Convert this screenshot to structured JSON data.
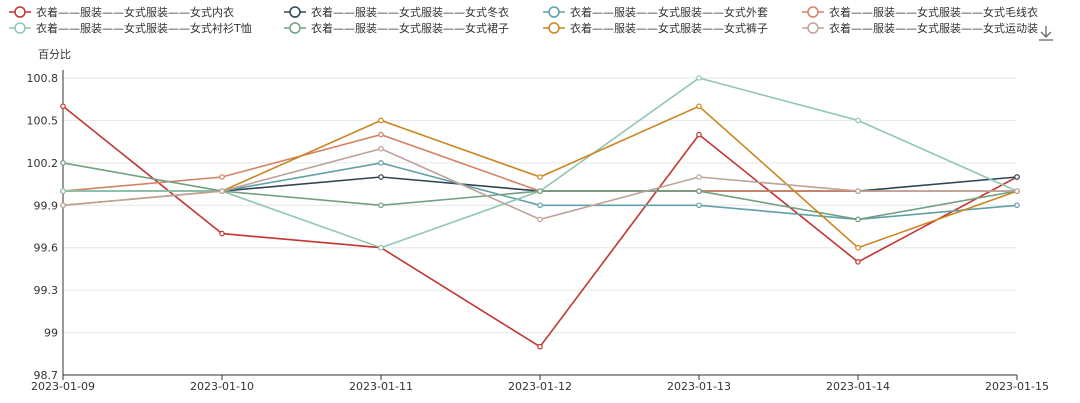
{
  "chart_data": {
    "type": "line",
    "ylabel": "百分比",
    "x": [
      "2023-01-09",
      "2023-01-10",
      "2023-01-11",
      "2023-01-12",
      "2023-01-13",
      "2023-01-14",
      "2023-01-15"
    ],
    "yticks": [
      "98.7",
      "99",
      "99.3",
      "99.6",
      "99.9",
      "100.2",
      "100.5",
      "100.8"
    ],
    "ylim": [
      98.7,
      100.8
    ],
    "grid": true,
    "legend_position": "top",
    "series": [
      {
        "name": "衣着——服装——女式服装——女式内衣",
        "color": "#c23531",
        "values": [
          100.6,
          99.7,
          99.6,
          98.9,
          100.4,
          99.5,
          100.1
        ]
      },
      {
        "name": "衣着——服装——女式服装——女式冬衣",
        "color": "#2f4554",
        "values": [
          100.0,
          100.0,
          100.1,
          100.0,
          100.0,
          100.0,
          100.1
        ]
      },
      {
        "name": "衣着——服装——女式服装——女式外套",
        "color": "#61a0a8",
        "values": [
          100.0,
          100.0,
          100.2,
          99.9,
          99.9,
          99.8,
          99.9
        ]
      },
      {
        "name": "衣着——服装——女式服装——女式毛线衣",
        "color": "#d48265",
        "values": [
          100.0,
          100.1,
          100.4,
          100.0,
          100.0,
          100.0,
          100.0
        ]
      },
      {
        "name": "衣着——服装——女式服装——女式衬衫T恤",
        "color": "#91c7ae",
        "values": [
          100.0,
          100.0,
          99.6,
          100.0,
          100.8,
          100.5,
          100.0
        ]
      },
      {
        "name": "衣着——服装——女式服装——女式裙子",
        "color": "#749f83",
        "values": [
          100.2,
          100.0,
          99.9,
          100.0,
          100.0,
          99.8,
          100.0
        ]
      },
      {
        "name": "衣着——服装——女式服装——女式裤子",
        "color": "#ca8622",
        "values": [
          99.9,
          100.0,
          100.5,
          100.1,
          100.6,
          99.6,
          100.0
        ]
      },
      {
        "name": "衣着——服装——女式服装——女式运动装",
        "color": "#bda29a",
        "values": [
          99.9,
          100.0,
          100.3,
          99.8,
          100.1,
          100.0,
          100.0
        ]
      }
    ]
  },
  "toolbar": {
    "download_icon": "download-icon"
  }
}
